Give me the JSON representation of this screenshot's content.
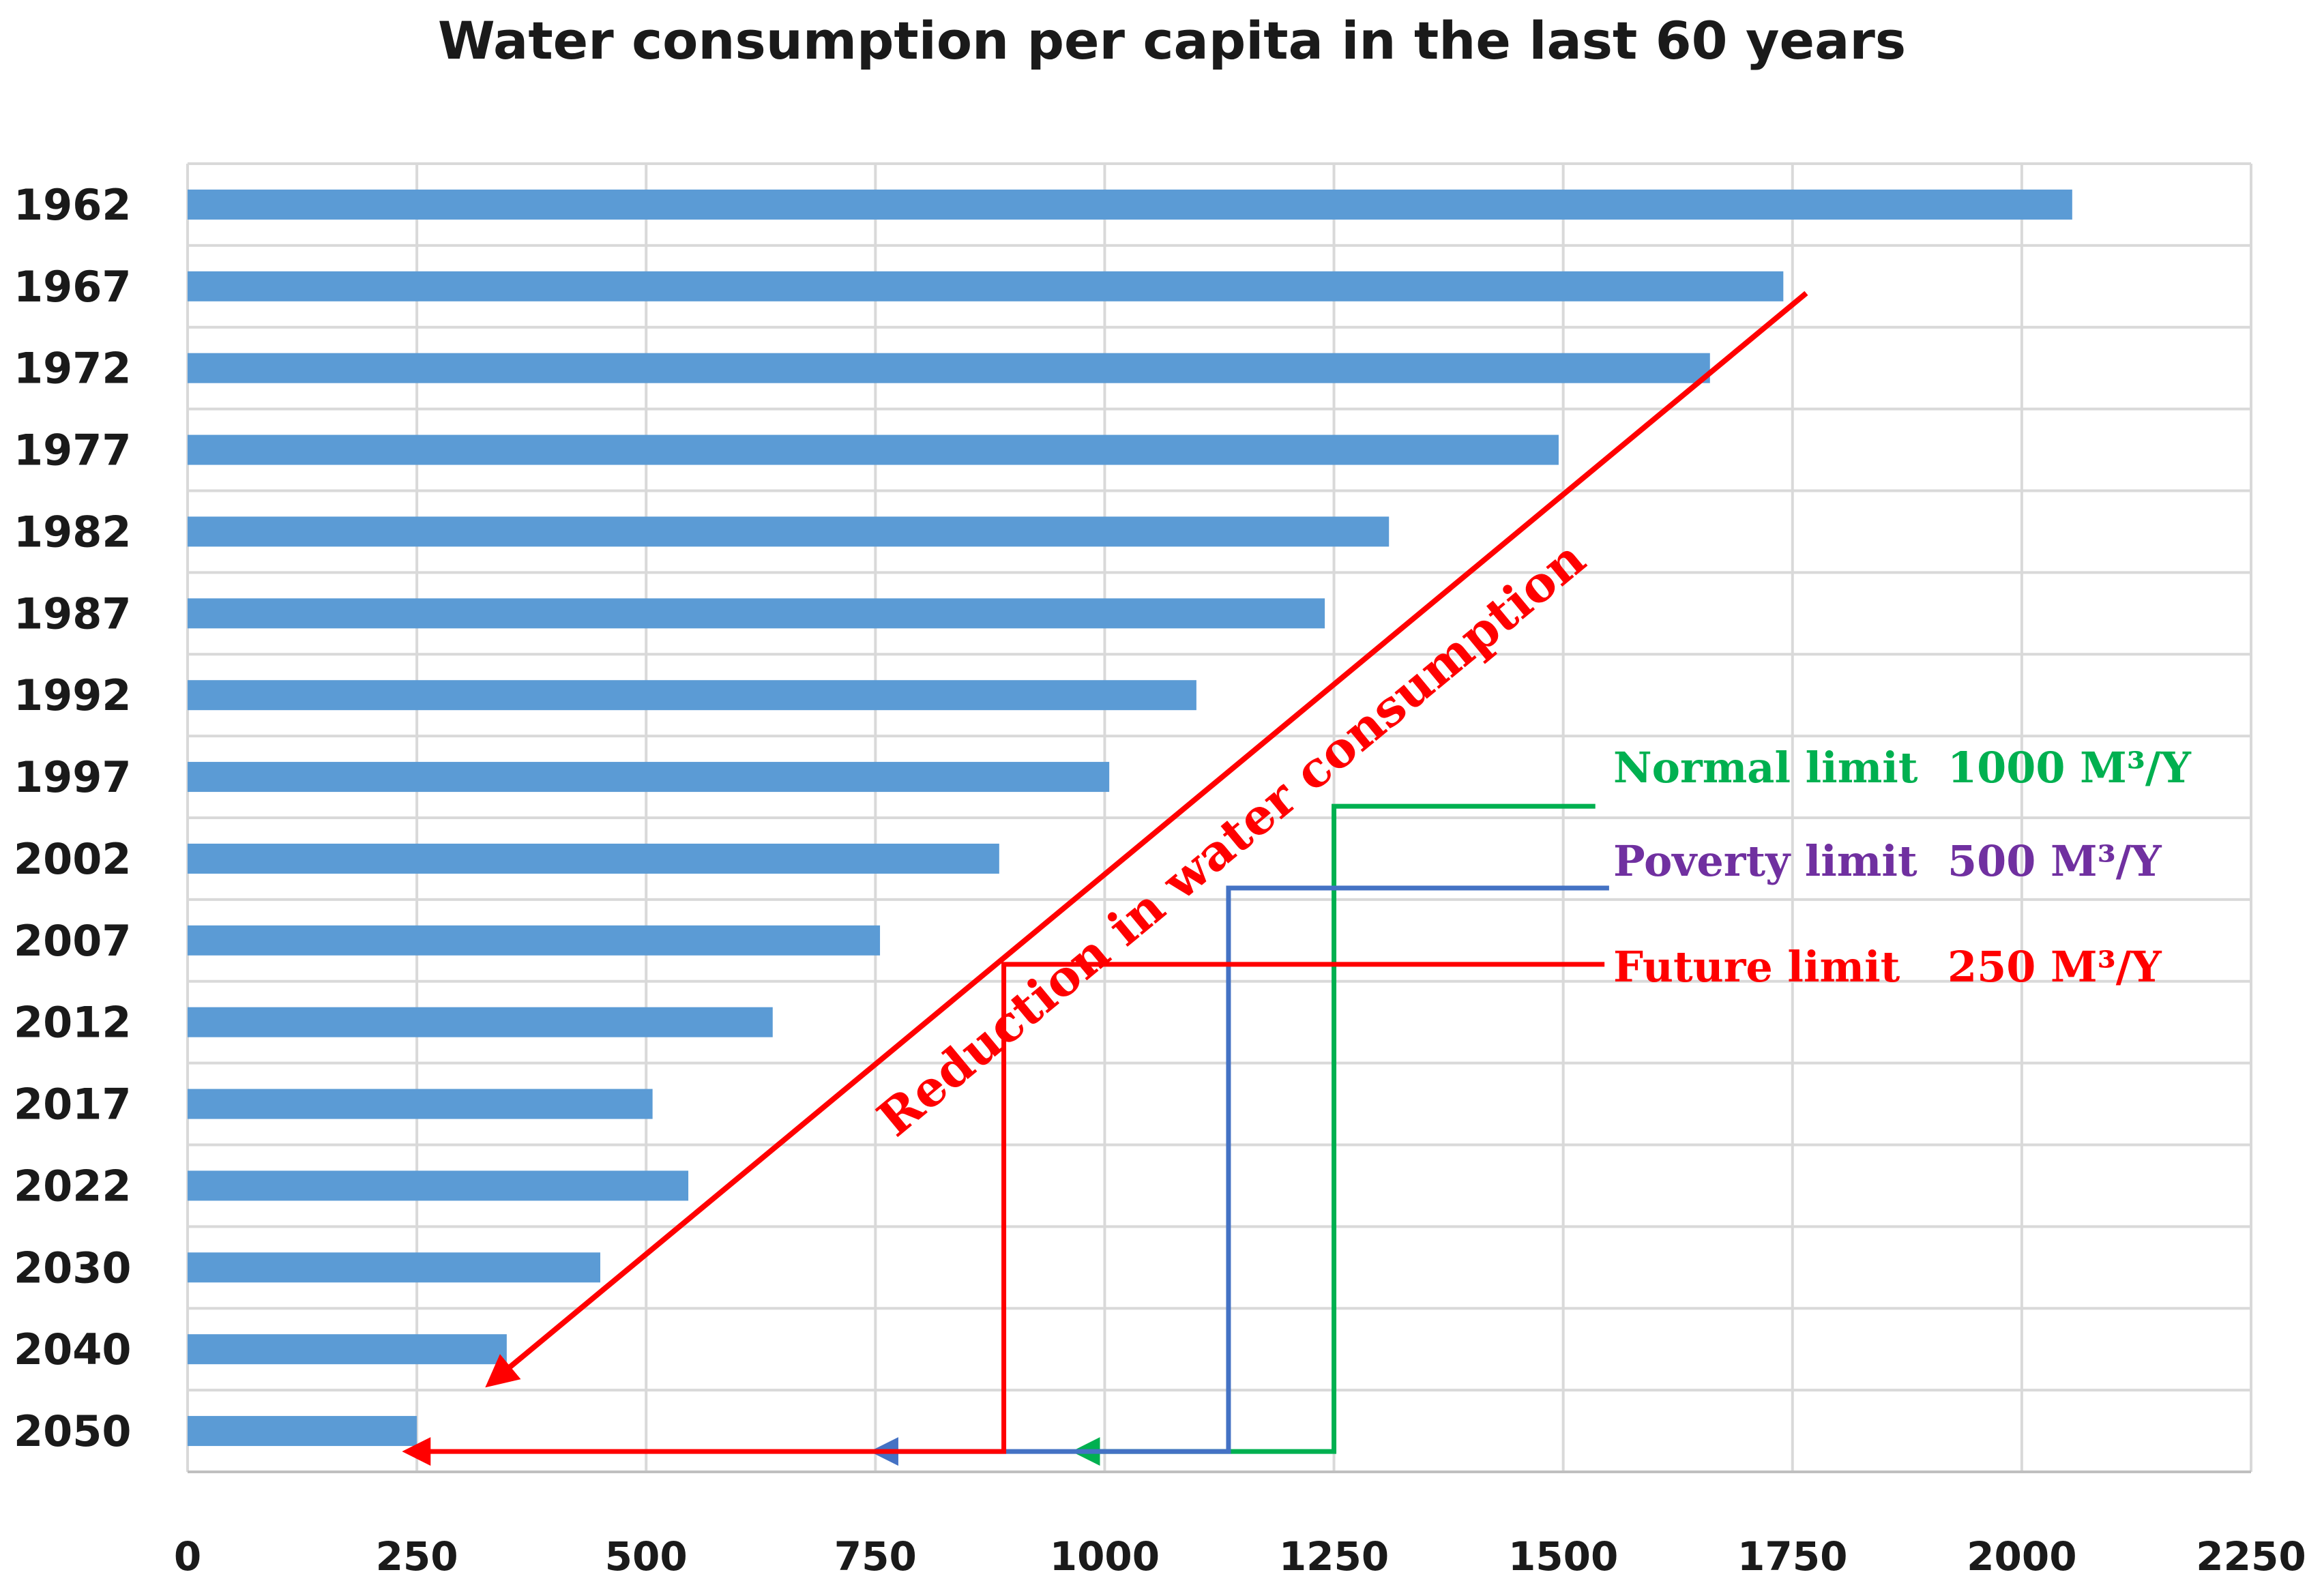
{
  "chart_data": {
    "type": "bar",
    "orientation": "horizontal",
    "title": "Water consumption per capita in the last 60 years",
    "categories": [
      "1962",
      "1967",
      "1972",
      "1977",
      "1982",
      "1987",
      "1992",
      "1997",
      "2002",
      "2007",
      "2012",
      "2017",
      "2022",
      "2030",
      "2040",
      "2050"
    ],
    "values": [
      2055,
      1740,
      1660,
      1495,
      1310,
      1240,
      1100,
      1005,
      885,
      755,
      638,
      507,
      546,
      450,
      348,
      250
    ],
    "xlim": [
      0,
      2250
    ],
    "xticks": [
      "0",
      "250",
      "500",
      "750",
      "1000",
      "1250",
      "1500",
      "1750",
      "2000",
      "2250"
    ],
    "xlabel": "",
    "ylabel": "",
    "grid": true,
    "bar_color": "#5b9bd5",
    "annotations": {
      "reduction_arrow": {
        "label": "Reduction in water consumption",
        "color": "#ff0000",
        "from_value": 1765,
        "to_value": 330
      },
      "limits": [
        {
          "name": "Normal limit",
          "value_label": "1000 M³/Y",
          "color": "#00b050",
          "text_color": "#00b050",
          "arrow_to": 970,
          "corner_value": 1250
        },
        {
          "name": "Poverty limit",
          "value_label": "500 M³/Y",
          "color": "#4472c4",
          "text_color": "#7030a0",
          "arrow_to": 750,
          "corner_value": 1135
        },
        {
          "name": "Future limit",
          "value_label": "250 M³/Y",
          "color": "#ff0000",
          "text_color": "#ff0000",
          "arrow_to": 240,
          "corner_value": 890
        }
      ]
    }
  }
}
